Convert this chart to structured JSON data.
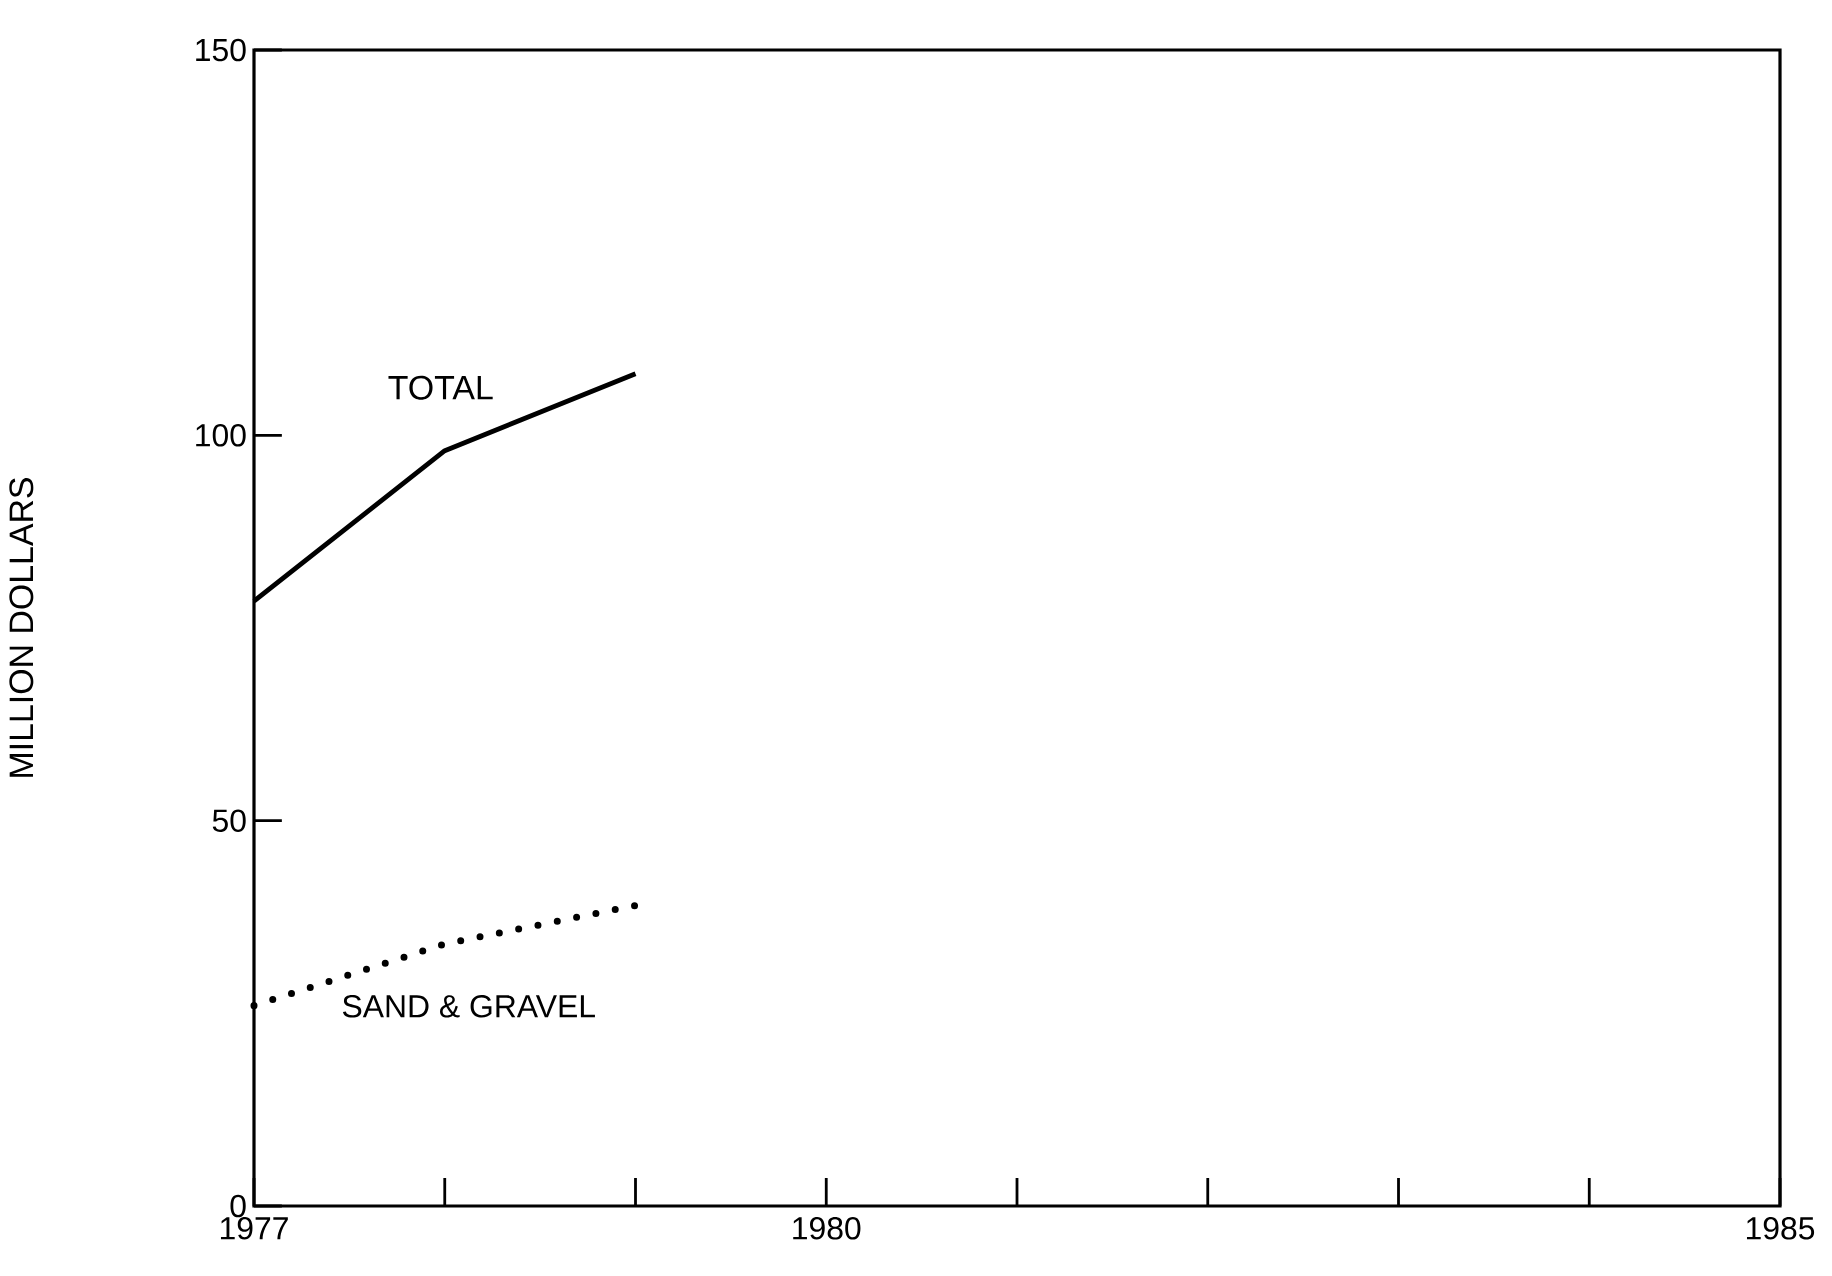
{
  "chart_data": {
    "type": "line",
    "ylabel": "MILLION DOLLARS",
    "x": [
      1977,
      1978,
      1979
    ],
    "series": [
      {
        "name": "TOTAL",
        "color": "#000000",
        "line_style": "solid",
        "values": [
          78.5,
          98,
          108
        ]
      },
      {
        "name": "SAND & GRAVEL",
        "color": "#000000",
        "line_style": "dotted",
        "values": [
          26,
          34,
          39
        ]
      }
    ],
    "xlim": [
      1977,
      1985
    ],
    "ylim": [
      0,
      150
    ],
    "xticks": [
      1977,
      {
        "value": 1978,
        "label": null
      },
      {
        "value": 1979,
        "label": null
      },
      1980,
      {
        "value": 1981,
        "label": null
      },
      {
        "value": 1982,
        "label": null
      },
      {
        "value": 1983,
        "label": null
      },
      {
        "value": 1984,
        "label": null
      },
      1985
    ],
    "yticks": [
      0,
      {
        "value": 50,
        "label": "50"
      },
      100,
      150
    ],
    "marker": "none",
    "legend": false,
    "grid": false
  }
}
